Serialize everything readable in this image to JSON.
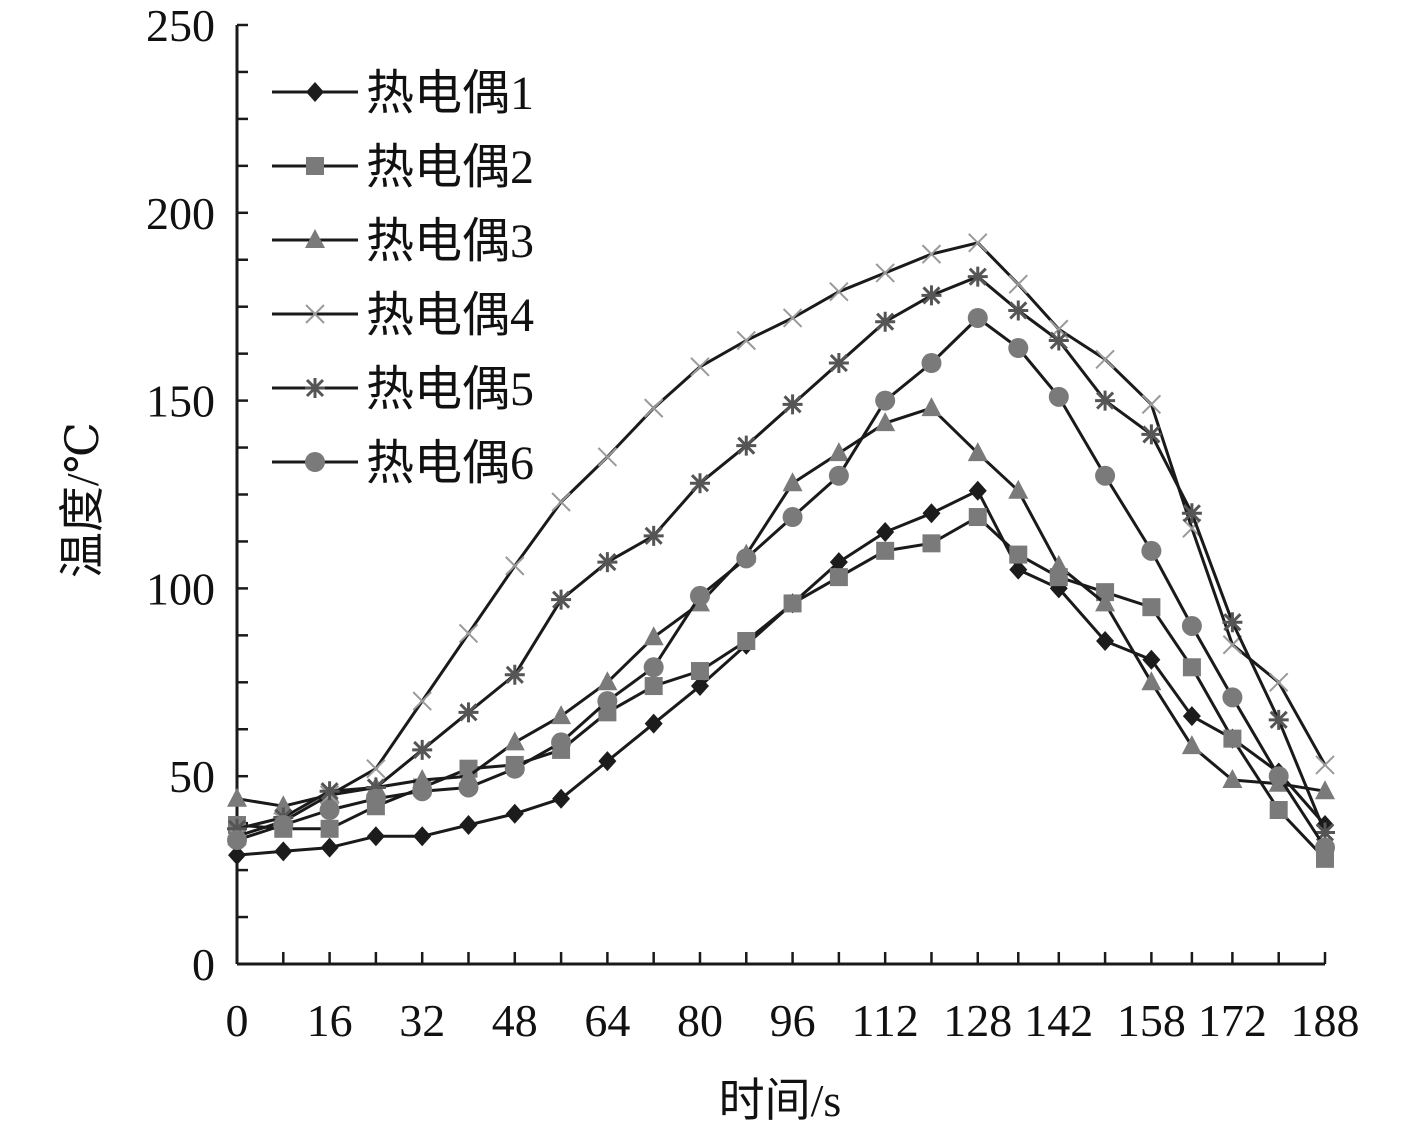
{
  "chart_data": {
    "type": "line",
    "title": "",
    "xlabel": "时间/s",
    "ylabel": "温度/℃",
    "ylim": [
      0,
      250
    ],
    "y_ticks": [
      "0",
      "50",
      "100",
      "150",
      "200",
      "250"
    ],
    "x_tick_labels": [
      "0",
      "16",
      "32",
      "48",
      "64",
      "80",
      "96",
      "112",
      "128",
      "142",
      "158",
      "172",
      "188"
    ],
    "grid": false,
    "legend_position": "top-left",
    "x": [
      0,
      8,
      16,
      24,
      32,
      40,
      48,
      56,
      64,
      72,
      80,
      88,
      96,
      104,
      112,
      120,
      128,
      135,
      142,
      150,
      158,
      165,
      172,
      180,
      188
    ],
    "series": [
      {
        "name": "热电偶1",
        "marker": "diamond",
        "values": [
          29,
          30,
          31,
          34,
          34,
          37,
          40,
          44,
          54,
          64,
          74,
          85,
          96,
          107,
          115,
          120,
          126,
          105,
          100,
          86,
          81,
          66,
          60,
          51,
          37
        ]
      },
      {
        "name": "热电偶2",
        "marker": "square",
        "values": [
          37,
          36,
          36,
          42,
          47,
          52,
          53,
          57,
          67,
          74,
          78,
          86,
          96,
          103,
          110,
          112,
          119,
          109,
          103,
          99,
          95,
          79,
          60,
          41,
          28
        ]
      },
      {
        "name": "热电偶3",
        "marker": "triangle",
        "values": [
          44,
          42,
          45,
          47,
          49,
          50,
          59,
          66,
          75,
          87,
          96,
          109,
          128,
          136,
          144,
          148,
          136,
          126,
          106,
          96,
          75,
          58,
          49,
          48,
          46
        ]
      },
      {
        "name": "热电偶4",
        "marker": "x",
        "values": [
          34,
          38,
          45,
          52,
          70,
          88,
          106,
          123,
          135,
          148,
          159,
          166,
          172,
          179,
          184,
          189,
          192,
          181,
          169,
          161,
          149,
          116,
          85,
          75,
          53
        ]
      },
      {
        "name": "热电偶5",
        "marker": "star",
        "values": [
          36,
          39,
          46,
          47,
          57,
          67,
          77,
          97,
          107,
          114,
          128,
          138,
          149,
          160,
          171,
          178,
          183,
          174,
          166,
          150,
          141,
          120,
          91,
          65,
          35
        ]
      },
      {
        "name": "热电偶6",
        "marker": "circle",
        "values": [
          33,
          37,
          41,
          44,
          46,
          47,
          52,
          59,
          70,
          79,
          98,
          108,
          119,
          130,
          150,
          160,
          172,
          164,
          151,
          130,
          110,
          90,
          71,
          50,
          31
        ]
      }
    ]
  },
  "colors": {
    "line": "#1a1a1a",
    "marker_dark": "#1c1c1c",
    "marker_mid": "#555555",
    "marker_light": "#7a7a7a"
  }
}
